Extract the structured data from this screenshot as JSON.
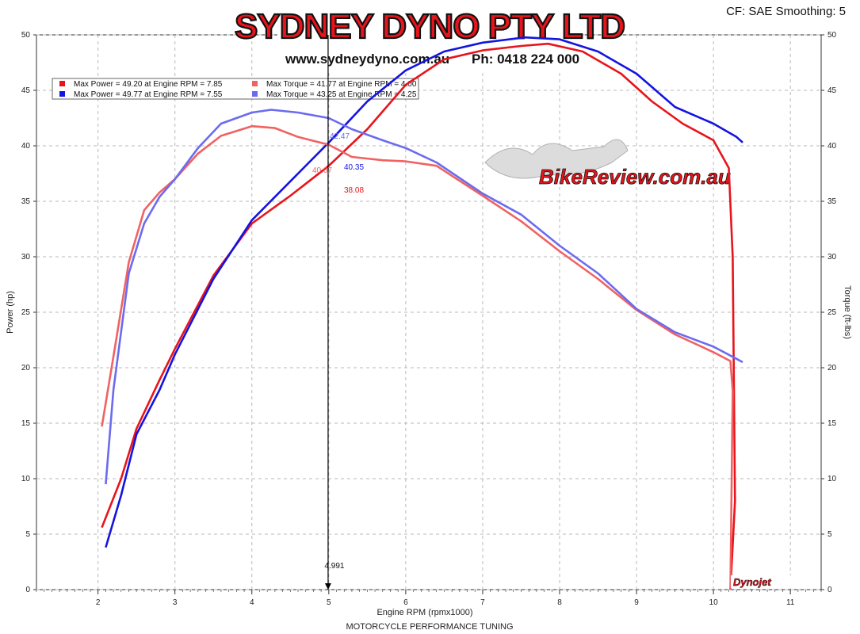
{
  "header": {
    "settings_text": "CF: SAE Smoothing: 5",
    "brand_title": "SYDNEY DYNO PTY LTD",
    "brand_url": "www.sydneydyno.com.au",
    "brand_phone": "Ph: 0418 224 000",
    "watermark": "BikeReview.com.au",
    "dynojet_logo": "Dynojet"
  },
  "footer": {
    "caption": "MOTORCYCLE PERFORMANCE TUNING"
  },
  "colors": {
    "power_run1": "#e8141b",
    "power_run2": "#1414e0",
    "torque_run1": "#f06262",
    "torque_run2": "#6b6bef"
  },
  "legend": [
    {
      "text": "Max Power = 49.20 at Engine RPM = 7.85",
      "color": "#e8141b"
    },
    {
      "text": "Max Torque = 41.77 at Engine RPM = 4.00",
      "color": "#f06262"
    },
    {
      "text": "Max Power = 49.77 at Engine RPM = 7.55",
      "color": "#1414e0"
    },
    {
      "text": "Max Torque = 43.25 at Engine RPM = 4.25",
      "color": "#6b6bef"
    }
  ],
  "cursor": {
    "x": 4.991,
    "label": "4.991",
    "readouts": [
      {
        "text": "42.47",
        "color": "#6b6bef"
      },
      {
        "text": "40.07",
        "color": "#f06262"
      },
      {
        "text": "40.35",
        "color": "#1414e0"
      },
      {
        "text": "38.08",
        "color": "#e8141b"
      }
    ]
  },
  "chart_data": {
    "type": "line",
    "xlabel": "Engine RPM (rpmx1000)",
    "ylabel": "Power (hp)",
    "y2label": "Torque (ft-lbs)",
    "xlim": [
      1.2,
      11.4
    ],
    "ylim": [
      0,
      50
    ],
    "x_ticks": [
      2,
      3,
      4,
      5,
      6,
      7,
      8,
      9,
      10,
      11
    ],
    "y_ticks": [
      0,
      5,
      10,
      15,
      20,
      25,
      30,
      35,
      40,
      45,
      50
    ],
    "y2_ticks": [
      0,
      5,
      10,
      15,
      20,
      25,
      30,
      35,
      40,
      45,
      50
    ],
    "grid": true,
    "legend_position": "top-left",
    "series": [
      {
        "axis": "power",
        "color": "#e8141b",
        "x": [
          2.05,
          2.3,
          2.5,
          2.8,
          3.0,
          3.5,
          4.0,
          4.5,
          5.0,
          5.5,
          6.0,
          6.5,
          7.0,
          7.5,
          7.85,
          8.3,
          8.8,
          9.2,
          9.6,
          10.0,
          10.2,
          10.25,
          10.28,
          10.22
        ],
        "y": [
          5.6,
          10.0,
          14.5,
          18.9,
          21.7,
          28.3,
          33.0,
          35.5,
          38.2,
          41.5,
          45.5,
          47.8,
          48.6,
          49.0,
          49.2,
          48.5,
          46.5,
          44.0,
          42.0,
          40.5,
          38.0,
          30.0,
          8.0,
          0.0
        ]
      },
      {
        "axis": "power",
        "color": "#1414e0",
        "x": [
          2.1,
          2.3,
          2.5,
          2.8,
          3.0,
          3.5,
          4.0,
          4.5,
          5.0,
          5.5,
          6.0,
          6.5,
          7.0,
          7.55,
          8.0,
          8.5,
          9.0,
          9.5,
          10.0,
          10.3,
          10.38
        ],
        "y": [
          3.8,
          8.5,
          14.0,
          18.0,
          21.2,
          28.0,
          33.3,
          36.8,
          40.3,
          44.0,
          46.8,
          48.5,
          49.3,
          49.77,
          49.6,
          48.5,
          46.5,
          43.5,
          42.0,
          40.8,
          40.3
        ]
      },
      {
        "axis": "torque",
        "color": "#f06262",
        "x": [
          2.05,
          2.2,
          2.4,
          2.6,
          2.8,
          3.0,
          3.3,
          3.6,
          4.0,
          4.3,
          4.6,
          5.0,
          5.3,
          5.7,
          6.0,
          6.4,
          7.0,
          7.5,
          8.0,
          8.5,
          9.0,
          9.5,
          10.0,
          10.22,
          10.25,
          10.22
        ],
        "y": [
          14.7,
          21.0,
          29.5,
          34.2,
          35.8,
          37.0,
          39.3,
          40.9,
          41.77,
          41.6,
          40.8,
          40.1,
          39.0,
          38.7,
          38.6,
          38.2,
          35.5,
          33.2,
          30.5,
          28.0,
          25.2,
          23.0,
          21.4,
          20.6,
          17.9,
          0.0
        ]
      },
      {
        "axis": "torque",
        "color": "#6b6bef",
        "x": [
          2.1,
          2.2,
          2.4,
          2.6,
          2.8,
          3.0,
          3.3,
          3.6,
          4.0,
          4.25,
          4.6,
          5.0,
          5.3,
          5.7,
          6.0,
          6.4,
          7.0,
          7.5,
          8.0,
          8.5,
          9.0,
          9.5,
          10.0,
          10.3,
          10.38
        ],
        "y": [
          9.5,
          18.0,
          28.5,
          33.0,
          35.4,
          37.0,
          39.8,
          42.0,
          43.0,
          43.25,
          43.0,
          42.5,
          41.5,
          40.5,
          39.8,
          38.5,
          35.7,
          33.8,
          31.0,
          28.5,
          25.3,
          23.2,
          21.9,
          20.8,
          20.5
        ]
      }
    ]
  }
}
